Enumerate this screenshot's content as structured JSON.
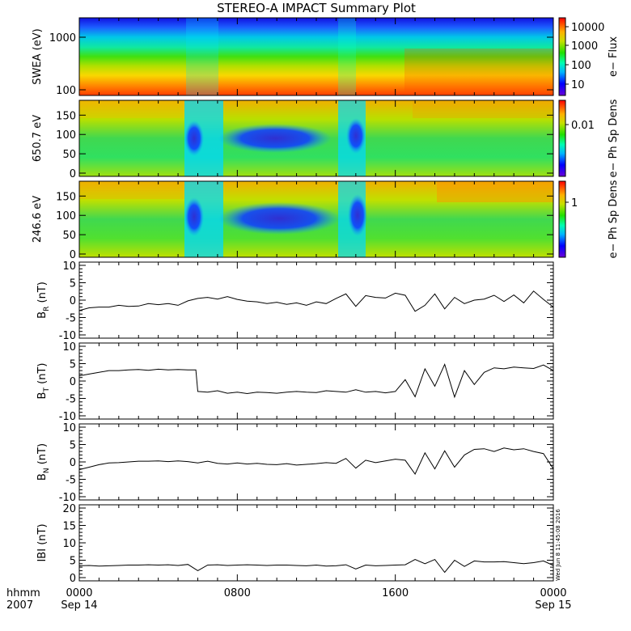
{
  "title": "STEREO-A IMPACT Summary Plot",
  "footer": {
    "hhmm": "hhmm",
    "year": "2007",
    "date_start": "Sep 14",
    "date_end": "Sep 15",
    "stamp": "Wed Jun  8 11:45:08 2016"
  },
  "spectrogram_panels": [
    {
      "ylabel": "SWEA (eV)",
      "yticks": [
        "1000",
        "100"
      ],
      "colorbar_label": "e− Flux",
      "colorbar_ticks": [
        "10000",
        "1000",
        "100",
        "10"
      ]
    },
    {
      "ylabel": "650.7 eV",
      "yticks": [
        "150",
        "100",
        "50",
        "0"
      ],
      "colorbar_label": "e− Ph Sp Dens",
      "colorbar_ticks": [
        "0.01"
      ]
    },
    {
      "ylabel": "246.6 eV",
      "yticks": [
        "150",
        "100",
        "50",
        "0"
      ],
      "colorbar_label": "e− Ph Sp Dens",
      "colorbar_ticks": [
        "1"
      ]
    }
  ],
  "line_panels": [
    {
      "ylabel": "B",
      "sub": "R",
      "unit": "(nT)",
      "yticks": [
        "10",
        "5",
        "0",
        "-5",
        "-10"
      ]
    },
    {
      "ylabel": "B",
      "sub": "T",
      "unit": "(nT)",
      "yticks": [
        "10",
        "5",
        "0",
        "-5",
        "-10"
      ]
    },
    {
      "ylabel": "B",
      "sub": "N",
      "unit": "(nT)",
      "yticks": [
        "10",
        "5",
        "0",
        "-5",
        "-10"
      ]
    },
    {
      "ylabel": "IBI",
      "sub": "",
      "unit": "(nT)",
      "yticks": [
        "20",
        "15",
        "10",
        "5",
        "0"
      ]
    }
  ],
  "xticks": [
    "0000",
    "0800",
    "1600",
    "0000"
  ],
  "chart_data": [
    {
      "type": "heatmap",
      "title": "STEREO-A IMPACT Summary Plot",
      "ylabel": "SWEA (eV)",
      "yscale": "log",
      "ylim": [
        100,
        1700
      ],
      "colorbar": {
        "label": "e− Flux",
        "scale": "log",
        "range": [
          5,
          15000
        ],
        "ticks": [
          10,
          100,
          1000,
          10000
        ]
      },
      "xlim_hours": [
        0,
        24
      ]
    },
    {
      "type": "heatmap",
      "ylabel": "650.7 eV",
      "ylim": [
        0,
        180
      ],
      "colorbar": {
        "label": "e− Ph Sp Dens",
        "ticks": [
          0.01
        ]
      },
      "xlim_hours": [
        0,
        24
      ]
    },
    {
      "type": "heatmap",
      "ylabel": "246.6 eV",
      "ylim": [
        0,
        180
      ],
      "colorbar": {
        "label": "e− Ph Sp Dens",
        "ticks": [
          1
        ]
      },
      "xlim_hours": [
        0,
        24
      ]
    },
    {
      "type": "line",
      "ylabel": "BR (nT)",
      "ylim": [
        -10,
        10
      ],
      "x_hours": [
        0,
        0.5,
        1,
        1.5,
        2,
        2.5,
        3,
        3.5,
        4,
        4.5,
        5,
        5.5,
        6,
        6.5,
        7,
        7.5,
        8,
        8.5,
        9,
        9.5,
        10,
        10.5,
        11,
        11.5,
        12,
        12.5,
        13,
        13.5,
        14,
        14.5,
        15,
        15.5,
        16,
        16.5,
        17,
        17.5,
        18,
        18.5,
        19,
        19.5,
        20,
        20.5,
        21,
        21.5,
        22,
        22.5,
        23,
        23.5,
        24
      ],
      "y": [
        -3,
        -2.2,
        -2,
        -2,
        -1.5,
        -1.8,
        -1.7,
        -1,
        -1.3,
        -1,
        -1.5,
        -0.2,
        0.5,
        0.8,
        0.3,
        1,
        0.2,
        -0.3,
        -0.5,
        -1,
        -0.6,
        -1.2,
        -0.8,
        -1.5,
        -0.5,
        -1,
        0.5,
        1.8,
        -1.8,
        1.3,
        0.8,
        0.6,
        2,
        1.4,
        -3.2,
        -1.5,
        1.8,
        -2.5,
        0.8,
        -1,
        0,
        0.3,
        1.4,
        -0.4,
        1.5,
        -0.8,
        2.6,
        0.2,
        -2
      ]
    },
    {
      "type": "line",
      "ylabel": "BT (nT)",
      "ylim": [
        -10,
        10
      ],
      "x_hours": [
        0,
        0.5,
        1,
        1.5,
        2,
        2.5,
        3,
        3.5,
        4,
        4.5,
        5,
        5.5,
        5.9,
        6,
        6.5,
        7,
        7.5,
        8,
        8.5,
        9,
        9.5,
        10,
        10.5,
        11,
        11.5,
        12,
        12.5,
        13,
        13.5,
        14,
        14.5,
        15,
        15.5,
        16,
        16.5,
        17,
        17.5,
        18,
        18.5,
        19,
        19.5,
        20,
        20.5,
        21,
        21.5,
        22,
        22.5,
        23,
        23.5,
        24
      ],
      "y": [
        1.5,
        2,
        2.5,
        3,
        3,
        3.2,
        3.3,
        3.1,
        3.4,
        3.2,
        3.3,
        3.2,
        3.2,
        -3,
        -3.2,
        -2.8,
        -3.5,
        -3.2,
        -3.6,
        -3.2,
        -3.3,
        -3.5,
        -3.2,
        -3,
        -3.2,
        -3.3,
        -2.8,
        -3,
        -3.2,
        -2.5,
        -3.2,
        -3,
        -3.4,
        -3,
        0.4,
        -4.5,
        3.5,
        -1.5,
        4.8,
        -4.6,
        3,
        -1,
        2.5,
        3.8,
        3.5,
        4,
        3.8,
        3.6,
        4.6,
        3
      ]
    },
    {
      "type": "line",
      "ylabel": "BN (nT)",
      "ylim": [
        -10,
        10
      ],
      "x_hours": [
        0,
        0.5,
        1,
        1.5,
        2,
        2.5,
        3,
        3.5,
        4,
        4.5,
        5,
        5.5,
        6,
        6.5,
        7,
        7.5,
        8,
        8.5,
        9,
        9.5,
        10,
        10.5,
        11,
        11.5,
        12,
        12.5,
        13,
        13.5,
        14,
        14.5,
        15,
        15.5,
        16,
        16.5,
        17,
        17.5,
        18,
        18.5,
        19,
        19.5,
        20,
        20.5,
        21,
        21.5,
        22,
        22.5,
        23,
        23.5,
        24
      ],
      "y": [
        -2.2,
        -1.5,
        -0.8,
        -0.3,
        -0.2,
        0,
        0.2,
        0.2,
        0.3,
        0.1,
        0.3,
        0.1,
        -0.3,
        0.2,
        -0.4,
        -0.6,
        -0.3,
        -0.6,
        -0.4,
        -0.7,
        -0.8,
        -0.5,
        -0.9,
        -0.7,
        -0.5,
        -0.2,
        -0.4,
        1,
        -1.8,
        0.5,
        -0.2,
        0.3,
        0.8,
        0.5,
        -3.5,
        2.6,
        -2,
        3.2,
        -1.5,
        2,
        3.6,
        3.8,
        3,
        4,
        3.5,
        3.8,
        3,
        2.4,
        -2
      ]
    },
    {
      "type": "line",
      "ylabel": "IBI (nT)",
      "ylim": [
        0,
        20
      ],
      "x_hours": [
        0,
        0.5,
        1,
        1.5,
        2,
        2.5,
        3,
        3.5,
        4,
        4.5,
        5,
        5.5,
        6,
        6.5,
        7,
        7.5,
        8,
        8.5,
        9,
        9.5,
        10,
        10.5,
        11,
        11.5,
        12,
        12.5,
        13,
        13.5,
        14,
        14.5,
        15,
        15.5,
        16,
        16.5,
        17,
        17.5,
        18,
        18.5,
        19,
        19.5,
        20,
        20.5,
        21,
        21.5,
        22,
        22.5,
        23,
        23.5,
        24
      ],
      "y": [
        3.4,
        3.5,
        3.3,
        3.4,
        3.5,
        3.6,
        3.6,
        3.7,
        3.6,
        3.7,
        3.5,
        3.8,
        2,
        3.6,
        3.7,
        3.5,
        3.6,
        3.7,
        3.6,
        3.5,
        3.6,
        3.6,
        3.5,
        3.4,
        3.6,
        3.3,
        3.4,
        3.7,
        2.5,
        3.6,
        3.4,
        3.5,
        3.6,
        3.7,
        5.2,
        4,
        5.2,
        1.5,
        5,
        3.2,
        4.8,
        4.5,
        4.5,
        4.6,
        4.3,
        4,
        4.3,
        4.8,
        3.5
      ]
    }
  ]
}
